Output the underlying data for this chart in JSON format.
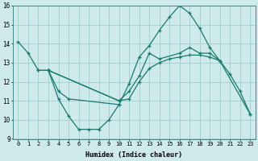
{
  "bg_color": "#ceeaea",
  "line_color": "#1a7a6e",
  "grid_color": "#9ecece",
  "xlabel": "Humidex (Indice chaleur)",
  "xlim": [
    -0.5,
    23.5
  ],
  "ylim": [
    9,
    16
  ],
  "yticks": [
    9,
    10,
    11,
    12,
    13,
    14,
    15,
    16
  ],
  "xticks": [
    0,
    1,
    2,
    3,
    4,
    5,
    6,
    7,
    8,
    9,
    10,
    11,
    12,
    13,
    14,
    15,
    16,
    17,
    18,
    19,
    20,
    21,
    22,
    23
  ],
  "series1_x": [
    0,
    1,
    2,
    3,
    4,
    5,
    6,
    7,
    8,
    9,
    10,
    11,
    12,
    13,
    14,
    15,
    16,
    17,
    18,
    19,
    20,
    21,
    22,
    23
  ],
  "series1_y": [
    14.1,
    13.5,
    12.6,
    12.6,
    11.1,
    10.2,
    9.5,
    9.5,
    9.5,
    10.0,
    10.8,
    11.9,
    13.3,
    13.9,
    14.7,
    15.4,
    16.0,
    15.6,
    14.8,
    13.8,
    13.1,
    12.4,
    11.5,
    10.3
  ],
  "series2_x": [
    2,
    3,
    4,
    5,
    10
  ],
  "series2_y": [
    12.6,
    12.6,
    11.5,
    11.1,
    10.8
  ],
  "series3_x": [
    3,
    10,
    11,
    12,
    13,
    14,
    16,
    17,
    18,
    19,
    20
  ],
  "series3_y": [
    12.6,
    11.0,
    11.5,
    12.3,
    13.5,
    13.2,
    13.5,
    13.8,
    13.5,
    13.5,
    13.1
  ],
  "series4_x": [
    3,
    10,
    11,
    12,
    13,
    14,
    15,
    16,
    17,
    18,
    19,
    20,
    23
  ],
  "series4_y": [
    12.6,
    11.0,
    11.1,
    12.0,
    12.7,
    13.0,
    13.2,
    13.3,
    13.4,
    13.4,
    13.3,
    13.1,
    10.3
  ]
}
